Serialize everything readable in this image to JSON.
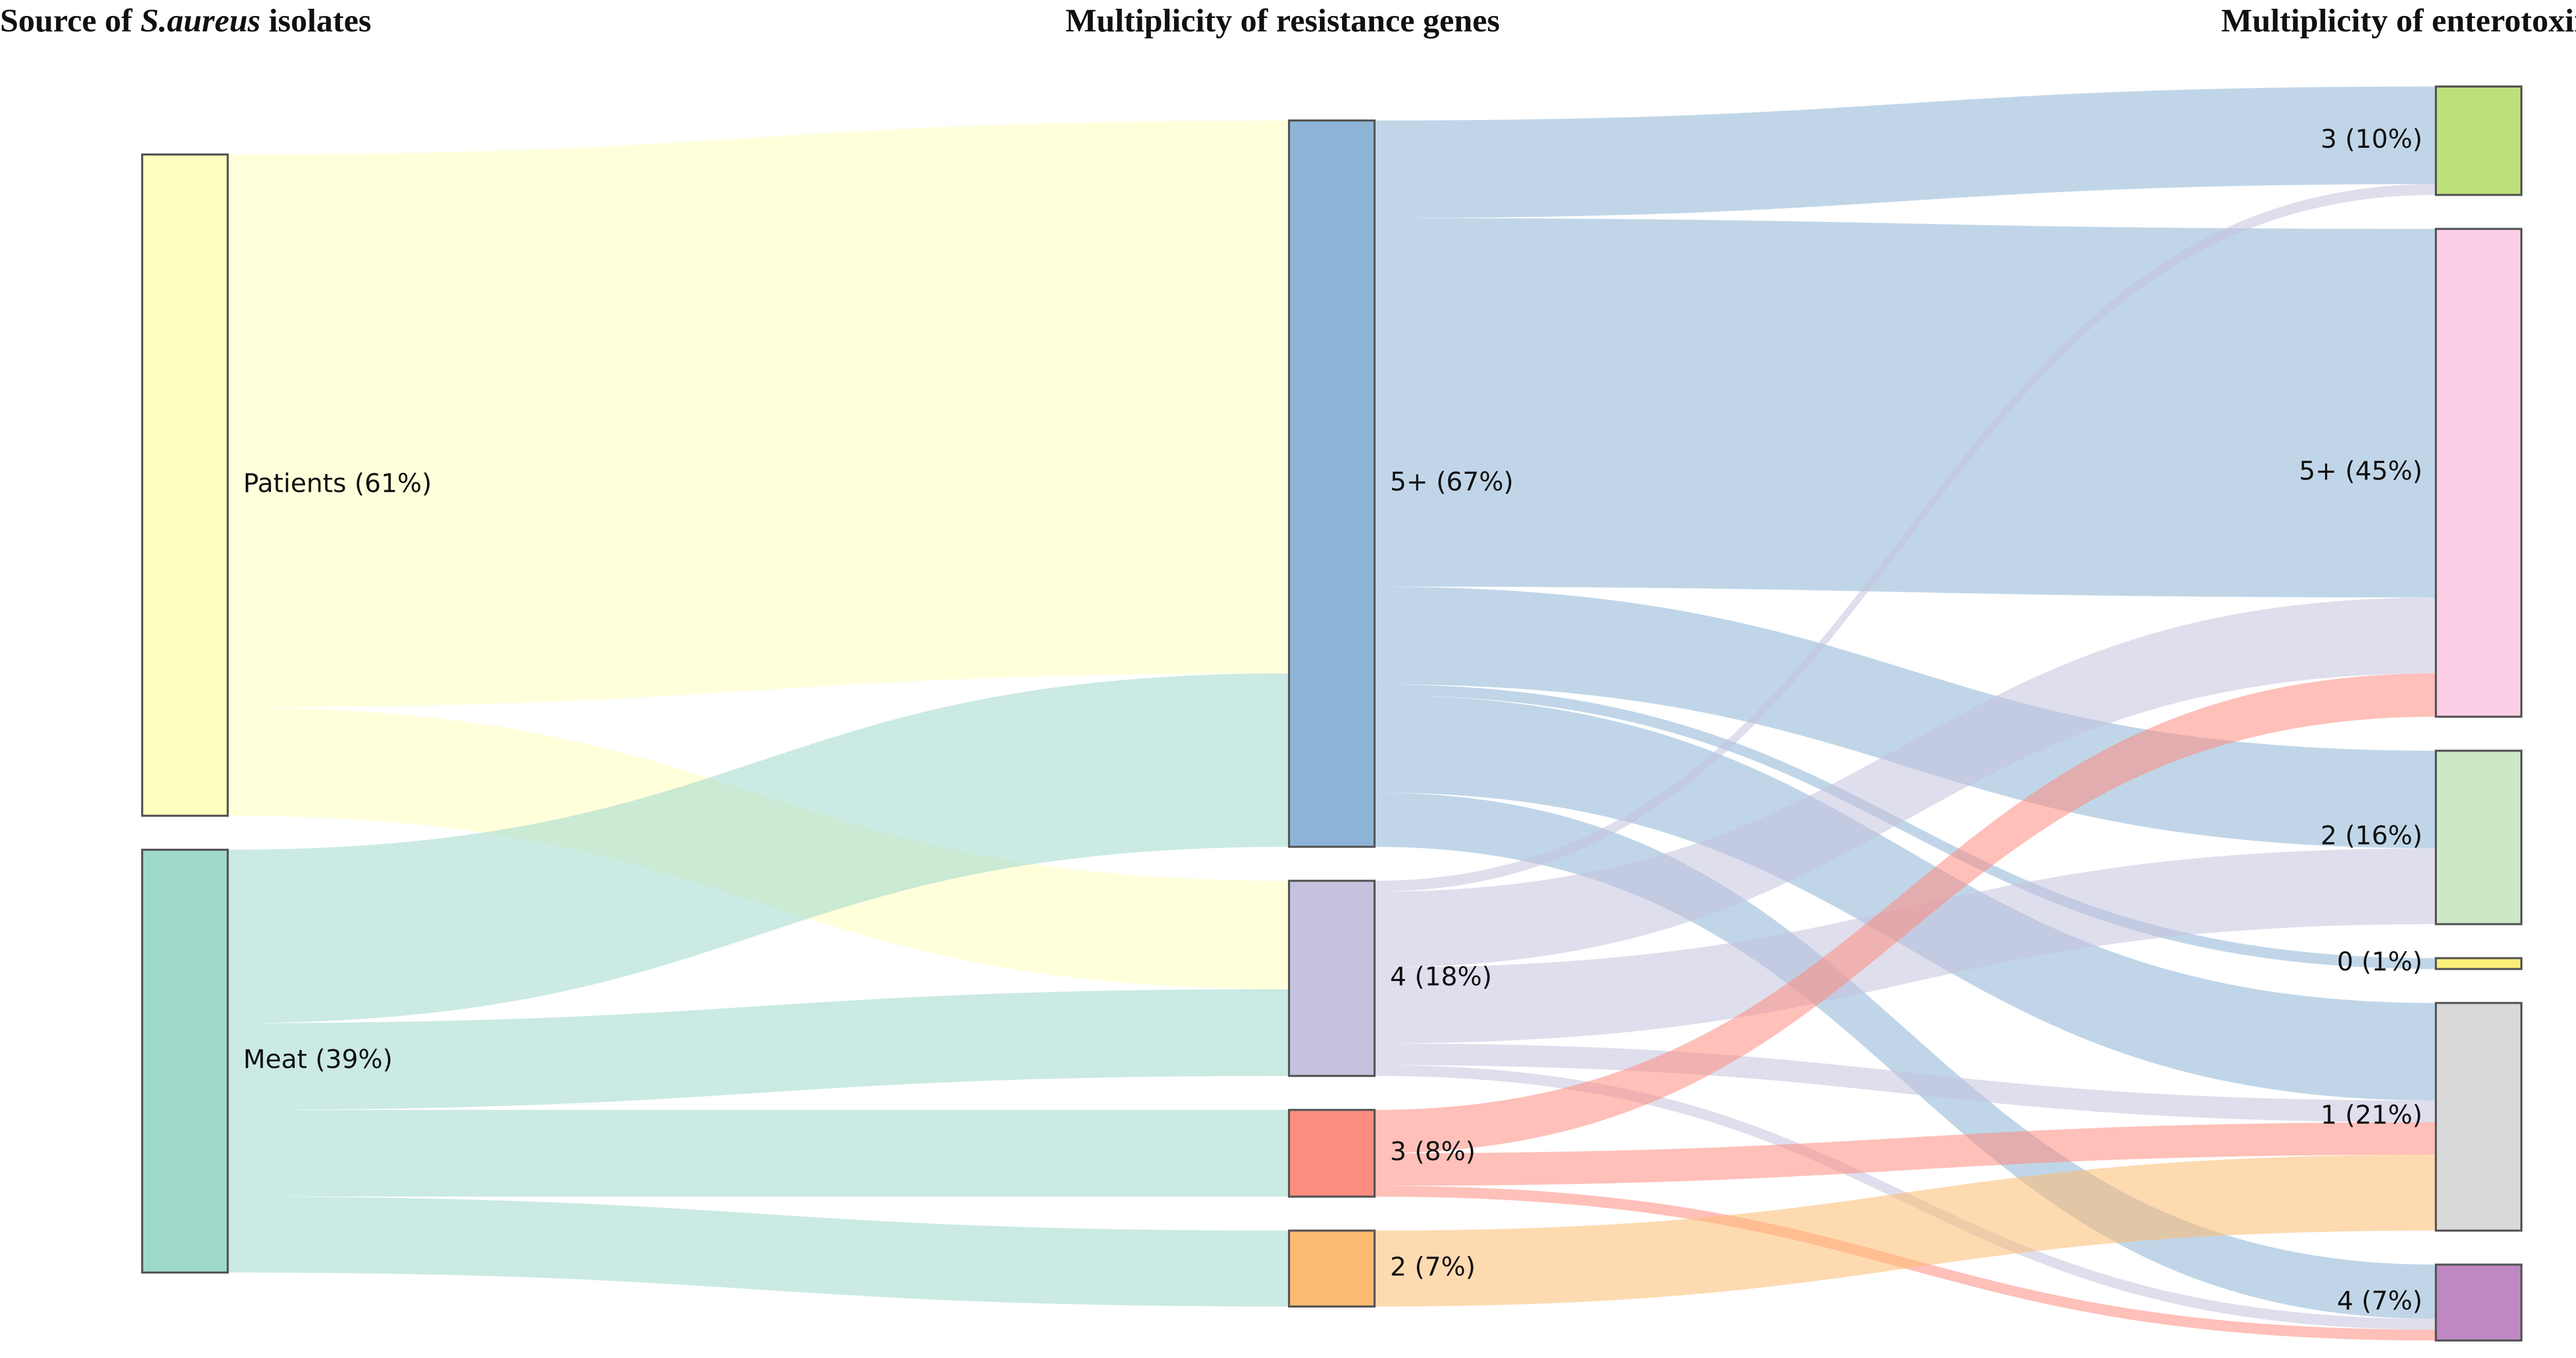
{
  "columns": [
    {
      "id": "source",
      "title_prefix": "Source of ",
      "title_italic": "S.aureus",
      "title_suffix": " isolates"
    },
    {
      "id": "resistance",
      "title_prefix": "Multiplicity of resistance genes",
      "title_italic": "",
      "title_suffix": ""
    },
    {
      "id": "enterotoxin",
      "title_prefix": "Multiplicity of enterotoxin genes",
      "title_italic": "",
      "title_suffix": ""
    }
  ],
  "chart_data": {
    "type": "sankey",
    "unit": "percent of isolates",
    "nodes": [
      {
        "id": "patients",
        "column": 0,
        "label": "Patients (61%)",
        "value": 61,
        "color": "#ffffbf"
      },
      {
        "id": "meat",
        "column": 0,
        "label": "Meat (39%)",
        "value": 39,
        "color": "#9fd9cc"
      },
      {
        "id": "r5",
        "column": 1,
        "label": "5+ (67%)",
        "value": 67,
        "color": "#8db4d6"
      },
      {
        "id": "r4",
        "column": 1,
        "label": "4 (18%)",
        "value": 18,
        "color": "#c5c2de"
      },
      {
        "id": "r3",
        "column": 1,
        "label": "3 (8%)",
        "value": 8,
        "color": "#fd8c80"
      },
      {
        "id": "r2",
        "column": 1,
        "label": "2 (7%)",
        "value": 7,
        "color": "#fdbb71"
      },
      {
        "id": "e3",
        "column": 2,
        "label": "3 (10%)",
        "value": 10,
        "color": "#bde17a"
      },
      {
        "id": "e5",
        "column": 2,
        "label": "5+ (45%)",
        "value": 45,
        "color": "#fccee6"
      },
      {
        "id": "e2",
        "column": 2,
        "label": "2 (16%)",
        "value": 16,
        "color": "#cce9c6"
      },
      {
        "id": "e0",
        "column": 2,
        "label": "0 (1%)",
        "value": 1,
        "color": "#fdee7a"
      },
      {
        "id": "e1",
        "column": 2,
        "label": "1 (21%)",
        "value": 21,
        "color": "#d9d9d9"
      },
      {
        "id": "e4",
        "column": 2,
        "label": "4 (7%)",
        "value": 7,
        "color": "#c088c2"
      }
    ],
    "links": [
      {
        "source": "patients",
        "target": "r5",
        "value": 51
      },
      {
        "source": "patients",
        "target": "r4",
        "value": 10
      },
      {
        "source": "meat",
        "target": "r5",
        "value": 16
      },
      {
        "source": "meat",
        "target": "r4",
        "value": 8
      },
      {
        "source": "meat",
        "target": "r3",
        "value": 8
      },
      {
        "source": "meat",
        "target": "r2",
        "value": 7
      },
      {
        "source": "r5",
        "target": "e3",
        "value": 9
      },
      {
        "source": "r5",
        "target": "e5",
        "value": 34
      },
      {
        "source": "r5",
        "target": "e2",
        "value": 9
      },
      {
        "source": "r5",
        "target": "e0",
        "value": 1
      },
      {
        "source": "r5",
        "target": "e1",
        "value": 9
      },
      {
        "source": "r5",
        "target": "e4",
        "value": 5
      },
      {
        "source": "r4",
        "target": "e3",
        "value": 1
      },
      {
        "source": "r4",
        "target": "e5",
        "value": 7
      },
      {
        "source": "r4",
        "target": "e2",
        "value": 7
      },
      {
        "source": "r4",
        "target": "e1",
        "value": 2
      },
      {
        "source": "r4",
        "target": "e4",
        "value": 1
      },
      {
        "source": "r3",
        "target": "e5",
        "value": 4
      },
      {
        "source": "r3",
        "target": "e1",
        "value": 3
      },
      {
        "source": "r3",
        "target": "e4",
        "value": 1
      },
      {
        "source": "r2",
        "target": "e1",
        "value": 7
      }
    ]
  }
}
